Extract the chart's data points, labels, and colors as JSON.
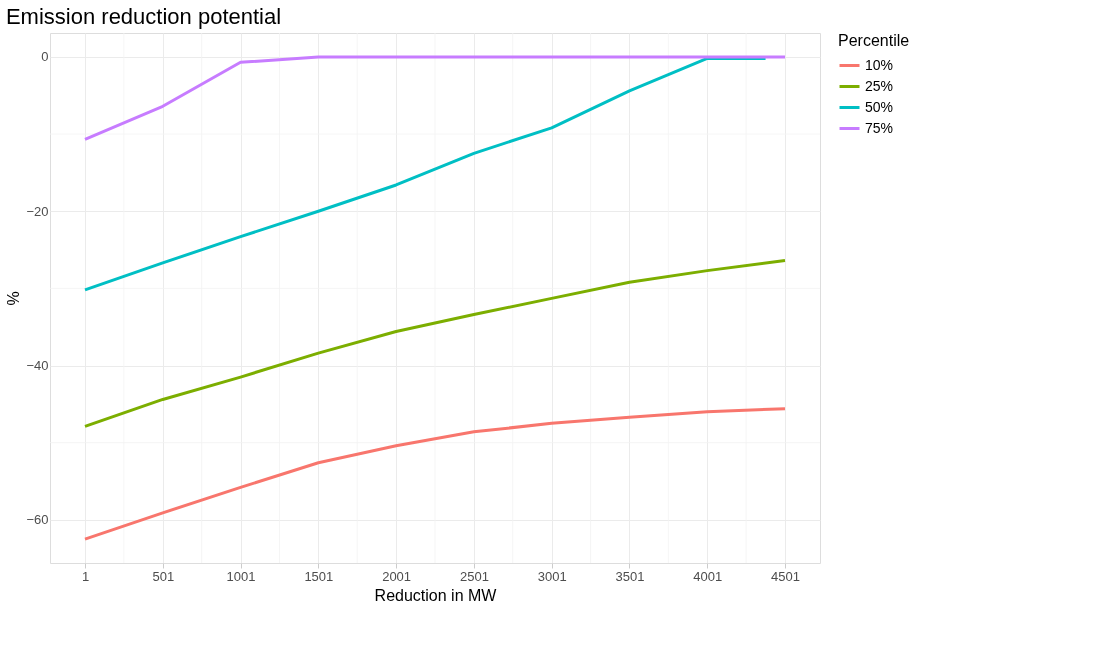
{
  "chart_data": {
    "type": "line",
    "title": "Emission reduction potential",
    "xlabel": "Reduction in MW",
    "ylabel": "%",
    "legend_title": "Percentile",
    "x": [
      1,
      501,
      1001,
      1501,
      2001,
      2501,
      3001,
      3501,
      4001,
      4501
    ],
    "series": [
      {
        "name": "10%",
        "color": "#f8766d",
        "values": [
          -62.5,
          -59.1,
          -55.8,
          -52.6,
          -50.4,
          -48.6,
          -47.5,
          -46.7,
          -46.0,
          -45.6
        ]
      },
      {
        "name": "25%",
        "color": "#7cae00",
        "values": [
          -47.9,
          -44.4,
          -41.5,
          -38.4,
          -35.6,
          -33.4,
          -31.3,
          -29.2,
          -27.7,
          -26.4
        ]
      },
      {
        "name": "50%",
        "color": "#00bfc4",
        "x": [
          1,
          501,
          1001,
          1501,
          2001,
          2501,
          3001,
          3501,
          4001,
          4376
        ],
        "values": [
          -30.2,
          -26.7,
          -23.3,
          -20.0,
          -16.6,
          -12.5,
          -9.2,
          -4.4,
          -0.2,
          -0.2
        ]
      },
      {
        "name": "75%",
        "color": "#c77cff",
        "values": [
          -10.7,
          -6.4,
          -0.7,
          0,
          0,
          0,
          0,
          0,
          0,
          0
        ]
      }
    ],
    "xlim": [
      -224,
      4726
    ],
    "xticks": [
      1,
      501,
      1001,
      1501,
      2001,
      2501,
      3001,
      3501,
      4001,
      4501
    ],
    "ylim": [
      -65.6,
      3.1
    ],
    "yticks": [
      -60,
      -40,
      -20,
      0
    ],
    "grid": true,
    "legend": "right",
    "marker": "none",
    "line_style": "solid"
  }
}
